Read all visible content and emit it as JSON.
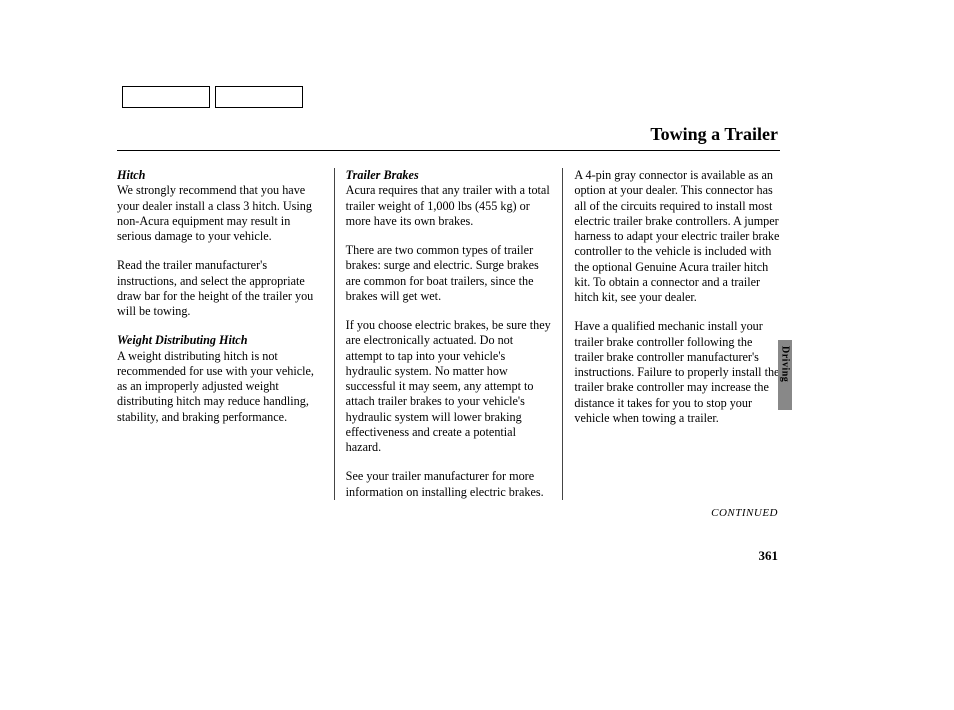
{
  "page_title": "Towing a Trailer",
  "side_tab": "Driving",
  "continued_label": "CONTINUED",
  "page_number": "361",
  "col1": {
    "h1": "Hitch",
    "p1": "We strongly recommend that you have your dealer install a class 3 hitch. Using non-Acura equipment may result in serious damage to your vehicle.",
    "p2": "Read the trailer manufacturer's instructions, and select the appropriate draw bar for the height of the trailer you will be towing.",
    "h2": "Weight Distributing Hitch",
    "p3": "A weight distributing hitch is not recommended for use with your vehicle, as an improperly adjusted weight distributing hitch may reduce handling, stability, and braking performance."
  },
  "col2": {
    "h1": "Trailer Brakes",
    "p1": "Acura requires that any trailer with a total trailer weight of 1,000 lbs (455 kg) or more have its own brakes.",
    "p2": "There are two common types of trailer brakes: surge and electric. Surge brakes are common for boat trailers, since the brakes will get wet.",
    "p3": "If you choose electric brakes, be sure they are electronically actuated. Do not attempt to tap into your vehicle's hydraulic system. No matter how successful it may seem, any attempt to attach trailer brakes to your vehicle's hydraulic system will lower braking effectiveness and create a potential hazard.",
    "p4": "See your trailer manufacturer for more information on installing electric brakes."
  },
  "col3": {
    "p1": "A 4-pin gray connector is available as an option at your dealer. This connector has all of the circuits required to install most electric trailer brake controllers. A jumper harness to adapt your electric trailer brake controller to the vehicle is included with the optional Genuine Acura trailer hitch kit. To obtain a connector and a trailer hitch kit, see your dealer.",
    "p2": "Have a qualified mechanic install your trailer brake controller following the trailer brake controller manufacturer's instructions. Failure to properly install the trailer brake controller may increase the distance it takes for you to stop your vehicle when towing a trailer."
  }
}
